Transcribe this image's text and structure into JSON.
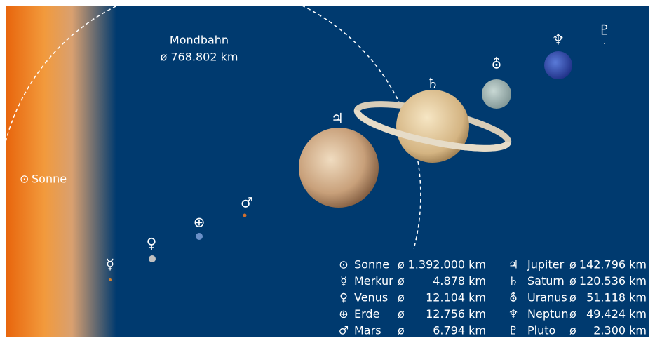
{
  "moon_orbit": {
    "label": "Mondbahn",
    "diameter": "ø 768.802 km"
  },
  "legend": {
    "rows": [
      {
        "symbol": "⊙",
        "name": "Sonne",
        "prefix": "ø",
        "diameter": "1.392.000 km"
      },
      {
        "symbol": "☿",
        "name": "Merkur",
        "prefix": "ø",
        "diameter": "4.878 km"
      },
      {
        "symbol": "♀",
        "name": "Venus",
        "prefix": "ø",
        "diameter": "12.104 km"
      },
      {
        "symbol": "⊕",
        "name": "Erde",
        "prefix": "ø",
        "diameter": "12.756 km"
      },
      {
        "symbol": "♂",
        "name": "Mars",
        "prefix": "ø",
        "diameter": "6.794 km"
      },
      {
        "symbol": "♃",
        "name": "Jupiter",
        "prefix": "ø",
        "diameter": "142.796 km"
      },
      {
        "symbol": "♄",
        "name": "Saturn",
        "prefix": "ø",
        "diameter": "120.536 km"
      },
      {
        "symbol": "⛢",
        "name": "Uranus",
        "prefix": "ø",
        "diameter": "51.118 km"
      },
      {
        "symbol": "♆",
        "name": "Neptun",
        "prefix": "ø",
        "diameter": "49.424 km"
      },
      {
        "symbol": "♇",
        "name": "Pluto",
        "prefix": "ø",
        "diameter": "2.300 km"
      }
    ]
  }
}
